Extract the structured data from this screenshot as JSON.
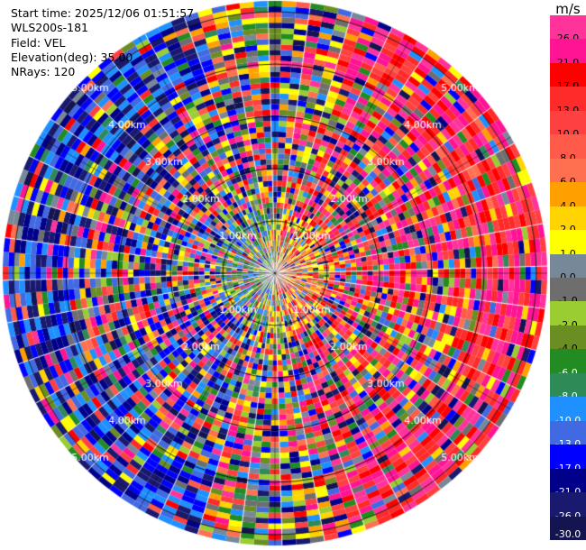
{
  "header": {
    "start_time": "Start time: 2025/12/06 01:51:57",
    "device": "WLS200s-181",
    "field": "Field: VEL",
    "elevation": "Elevation(deg): 35.00",
    "nrays": "NRays: 120"
  },
  "chart_data": {
    "type": "heatmap",
    "projection": "polar (PPI scan)",
    "title": "",
    "field": "VEL",
    "unit": "m/s",
    "elevation_deg": 35.0,
    "nrays": 120,
    "max_range_km": 5.0,
    "range_rings_km": [
      1.0,
      2.0,
      3.0,
      4.0,
      5.0
    ],
    "range_ring_labels": [
      "1.00km",
      "2.00km",
      "3.00km",
      "4.00km",
      "5.00km"
    ],
    "range_gates": 50,
    "colorbar": {
      "labels": [
        "26.0",
        "21.0",
        "17.0",
        "13.0",
        "10.0",
        "8.0",
        "6.0",
        "4.0",
        "2.0",
        "1.0",
        "0.0",
        "-1.0",
        "-2.0",
        "-4.0",
        "-6.0",
        "-8.0",
        "-10.0",
        "-13.0",
        "-17.0",
        "-21.0",
        "-26.0",
        "-30.0"
      ],
      "colors": [
        "#ff3399",
        "#ff1493",
        "#ff0000",
        "#ff2a2a",
        "#ff4040",
        "#ff5a4a",
        "#ff7050",
        "#ffa000",
        "#ffd400",
        "#ffff00",
        "#778899",
        "#6e6e6e",
        "#9acd32",
        "#6b8e23",
        "#228b22",
        "#2e8b57",
        "#1e90ff",
        "#4169e1",
        "#0000ff",
        "#00008b",
        "#191970",
        "#141450"
      ]
    },
    "pattern": {
      "near_field_up_to_km": 1.0,
      "near_field_east_sector": "positive (orange/red)",
      "near_field_west_sector": "negative (green/blue)",
      "outer_east_sector": "high positive (pink/red)",
      "outer_west_sector": "high negative (blue/navy)",
      "noise": "heavy speckle across all ranges"
    }
  }
}
